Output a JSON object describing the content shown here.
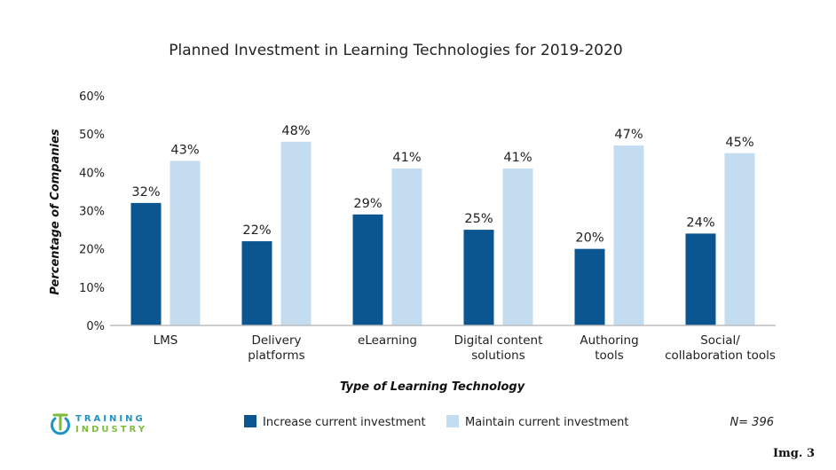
{
  "chart_data": {
    "type": "bar",
    "title": "Planned Investment in Learning Technologies for 2019-2020",
    "xlabel": "Type of Learning Technology",
    "ylabel": "Percentage of Companies",
    "ylim": [
      0,
      60
    ],
    "yticks": [
      "0%",
      "10%",
      "20%",
      "30%",
      "40%",
      "50%",
      "60%"
    ],
    "categories": [
      [
        "LMS"
      ],
      [
        "Delivery",
        "platforms"
      ],
      [
        "eLearning"
      ],
      [
        "Digital content",
        "solutions"
      ],
      [
        "Authoring",
        "tools"
      ],
      [
        "Social/",
        "collaboration tools"
      ]
    ],
    "series": [
      {
        "name": "Increase current investment",
        "color": "#0b5590",
        "values": [
          32,
          22,
          29,
          25,
          20,
          24
        ],
        "labels": [
          "32%",
          "22%",
          "29%",
          "25%",
          "20%",
          "24%"
        ]
      },
      {
        "name": "Maintain current investment",
        "color": "#c3dcf0",
        "values": [
          43,
          48,
          41,
          41,
          47,
          45
        ],
        "labels": [
          "43%",
          "48%",
          "41%",
          "41%",
          "47%",
          "45%"
        ]
      }
    ],
    "legend_position": "bottom",
    "grid": false
  },
  "footer": {
    "note": "N= 396",
    "logo_line1": "TRAINING",
    "logo_line2": "INDUSTRY",
    "img_label": "Img. 3"
  },
  "colors": {
    "logo_teal": "#1e94c2",
    "logo_green": "#7dbb3c"
  }
}
